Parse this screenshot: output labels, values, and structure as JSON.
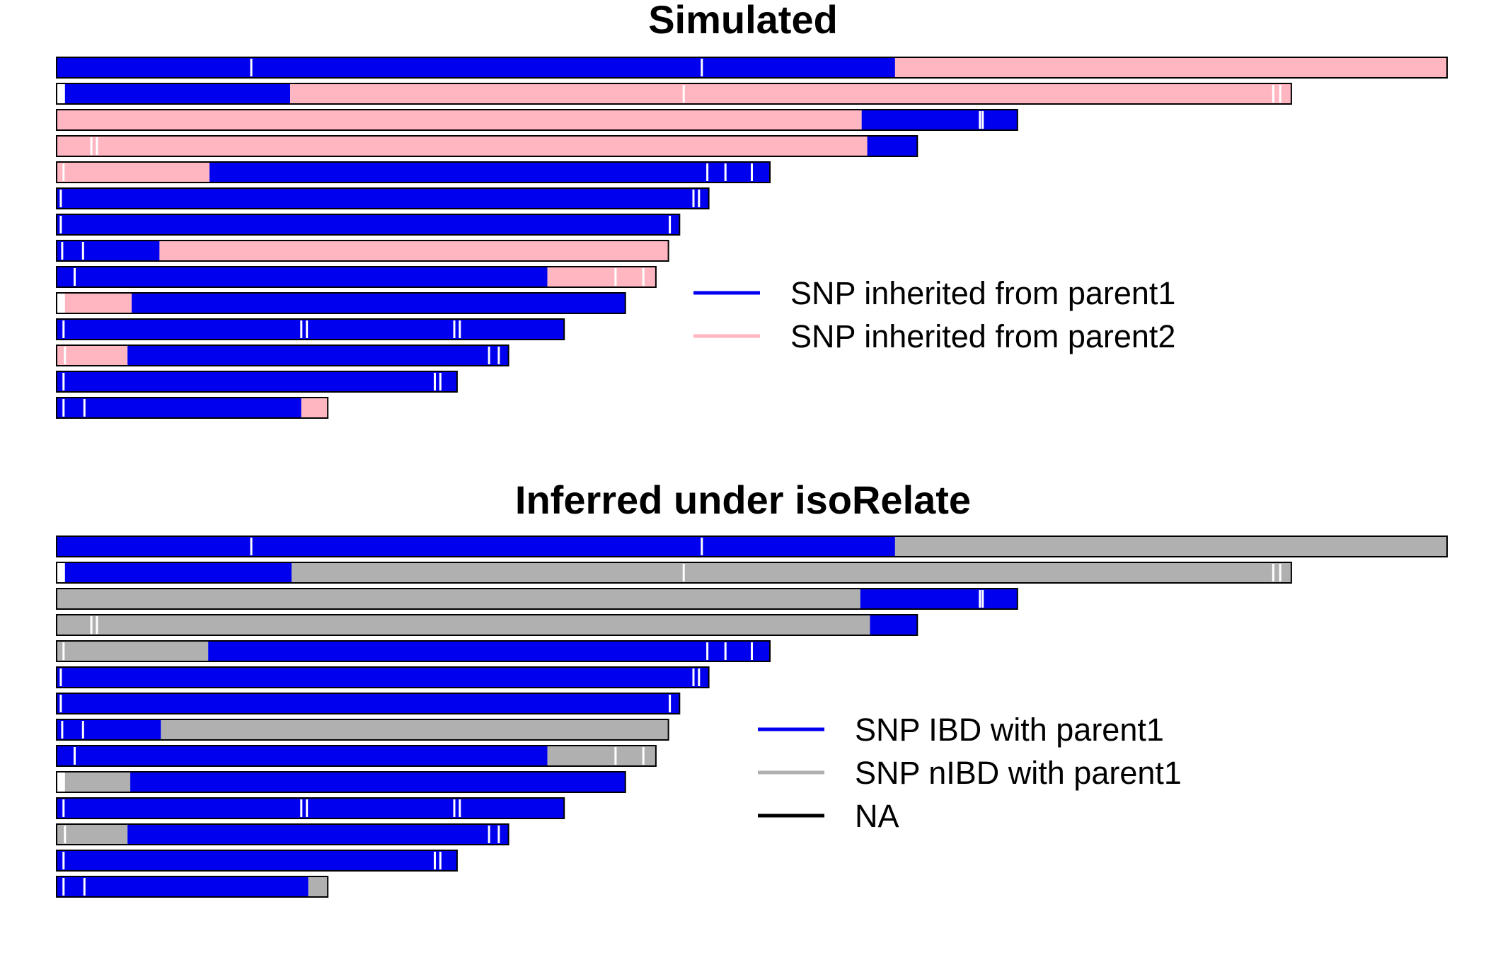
{
  "colors": {
    "parent1": "#0000ee",
    "parent2": "#ffb6c1",
    "nibd": "#b0b0b0",
    "na": "#ffffff",
    "frame": "#000000",
    "legend_na": "#000000"
  },
  "chart_data": [
    {
      "type": "bar",
      "orientation": "horizontal",
      "title": "Simulated",
      "xlabel": "",
      "ylabel": "",
      "grid": false,
      "legend_position": "right",
      "x_units": "fraction of longest chromosome",
      "legend": [
        {
          "label": "SNP inherited from parent1",
          "color_key": "parent1"
        },
        {
          "label": "SNP inherited from parent2",
          "color_key": "parent2"
        }
      ],
      "chromosomes": [
        {
          "length": 1.0,
          "segments": [
            [
              0.0,
              0.603,
              "parent1"
            ],
            [
              0.603,
              1.0,
              "parent2"
            ]
          ],
          "gaps": [
            0.14,
            0.464
          ]
        },
        {
          "length": 0.888,
          "segments": [
            [
              0.0,
              0.006,
              "na"
            ],
            [
              0.006,
              0.168,
              "parent1"
            ],
            [
              0.168,
              0.888,
              "parent2"
            ]
          ],
          "gaps": [
            0.451,
            0.875,
            0.88
          ]
        },
        {
          "length": 0.691,
          "segments": [
            [
              0.0,
              0.579,
              "parent2"
            ],
            [
              0.579,
              0.691,
              "parent1"
            ]
          ],
          "gaps": [
            0.664,
            0.666
          ]
        },
        {
          "length": 0.619,
          "segments": [
            [
              0.0,
              0.583,
              "parent2"
            ],
            [
              0.583,
              0.619,
              "parent1"
            ]
          ],
          "gaps": [
            0.025,
            0.029
          ]
        },
        {
          "length": 0.513,
          "segments": [
            [
              0.0,
              0.11,
              "parent2"
            ],
            [
              0.11,
              0.513,
              "parent1"
            ]
          ],
          "gaps": [
            0.005,
            0.468,
            0.481,
            0.5
          ]
        },
        {
          "length": 0.469,
          "segments": [
            [
              0.0,
              0.469,
              "parent1"
            ]
          ],
          "gaps": [
            0.003,
            0.458,
            0.462
          ]
        },
        {
          "length": 0.448,
          "segments": [
            [
              0.0,
              0.448,
              "parent1"
            ]
          ],
          "gaps": [
            0.003,
            0.441
          ]
        },
        {
          "length": 0.44,
          "segments": [
            [
              0.0,
              0.074,
              "parent1"
            ],
            [
              0.074,
              0.44,
              "parent2"
            ]
          ],
          "gaps": [
            0.004,
            0.019
          ]
        },
        {
          "length": 0.431,
          "segments": [
            [
              0.0,
              0.353,
              "parent1"
            ],
            [
              0.353,
              0.431,
              "parent2"
            ]
          ],
          "gaps": [
            0.013,
            0.402,
            0.422
          ]
        },
        {
          "length": 0.409,
          "segments": [
            [
              0.0,
              0.006,
              "na"
            ],
            [
              0.006,
              0.054,
              "parent2"
            ],
            [
              0.054,
              0.409,
              "parent1"
            ]
          ],
          "gaps": []
        },
        {
          "length": 0.365,
          "segments": [
            [
              0.0,
              0.365,
              "parent1"
            ]
          ],
          "gaps": [
            0.005,
            0.176,
            0.18,
            0.286,
            0.29
          ]
        },
        {
          "length": 0.325,
          "segments": [
            [
              0.0,
              0.051,
              "parent2"
            ],
            [
              0.051,
              0.325,
              "parent1"
            ]
          ],
          "gaps": [
            0.006,
            0.311,
            0.318
          ]
        },
        {
          "length": 0.288,
          "segments": [
            [
              0.0,
              0.288,
              "parent1"
            ]
          ],
          "gaps": [
            0.005,
            0.272,
            0.276
          ]
        },
        {
          "length": 0.195,
          "segments": [
            [
              0.0,
              0.176,
              "parent1"
            ],
            [
              0.176,
              0.195,
              "parent2"
            ]
          ],
          "gaps": [
            0.005,
            0.02
          ]
        }
      ]
    },
    {
      "type": "bar",
      "orientation": "horizontal",
      "title": "Inferred under isoRelate",
      "xlabel": "",
      "ylabel": "",
      "grid": false,
      "legend_position": "right",
      "x_units": "fraction of longest chromosome",
      "legend": [
        {
          "label": "SNP IBD with parent1",
          "color_key": "parent1"
        },
        {
          "label": "SNP nIBD with parent1",
          "color_key": "nibd"
        },
        {
          "label": "NA",
          "color_key": "legend_na"
        }
      ],
      "chromosomes": [
        {
          "length": 1.0,
          "segments": [
            [
              0.0,
              0.603,
              "parent1"
            ],
            [
              0.603,
              1.0,
              "nibd"
            ]
          ],
          "gaps": [
            0.14,
            0.464
          ]
        },
        {
          "length": 0.888,
          "segments": [
            [
              0.0,
              0.006,
              "na"
            ],
            [
              0.006,
              0.169,
              "parent1"
            ],
            [
              0.169,
              0.888,
              "nibd"
            ]
          ],
          "gaps": [
            0.451,
            0.875,
            0.88
          ]
        },
        {
          "length": 0.691,
          "segments": [
            [
              0.0,
              0.578,
              "nibd"
            ],
            [
              0.578,
              0.691,
              "parent1"
            ]
          ],
          "gaps": [
            0.664,
            0.666
          ]
        },
        {
          "length": 0.619,
          "segments": [
            [
              0.0,
              0.585,
              "nibd"
            ],
            [
              0.585,
              0.619,
              "parent1"
            ]
          ],
          "gaps": [
            0.025,
            0.029
          ]
        },
        {
          "length": 0.513,
          "segments": [
            [
              0.0,
              0.109,
              "nibd"
            ],
            [
              0.109,
              0.513,
              "parent1"
            ]
          ],
          "gaps": [
            0.005,
            0.468,
            0.481,
            0.5
          ]
        },
        {
          "length": 0.469,
          "segments": [
            [
              0.0,
              0.469,
              "parent1"
            ]
          ],
          "gaps": [
            0.003,
            0.458,
            0.462
          ]
        },
        {
          "length": 0.448,
          "segments": [
            [
              0.0,
              0.448,
              "parent1"
            ]
          ],
          "gaps": [
            0.003,
            0.441
          ]
        },
        {
          "length": 0.44,
          "segments": [
            [
              0.0,
              0.075,
              "parent1"
            ],
            [
              0.075,
              0.44,
              "nibd"
            ]
          ],
          "gaps": [
            0.004,
            0.019
          ]
        },
        {
          "length": 0.431,
          "segments": [
            [
              0.0,
              0.353,
              "parent1"
            ],
            [
              0.353,
              0.431,
              "nibd"
            ]
          ],
          "gaps": [
            0.013,
            0.402,
            0.422
          ]
        },
        {
          "length": 0.409,
          "segments": [
            [
              0.0,
              0.006,
              "na"
            ],
            [
              0.006,
              0.053,
              "nibd"
            ],
            [
              0.053,
              0.409,
              "parent1"
            ]
          ],
          "gaps": []
        },
        {
          "length": 0.365,
          "segments": [
            [
              0.0,
              0.365,
              "parent1"
            ]
          ],
          "gaps": [
            0.005,
            0.176,
            0.18,
            0.286,
            0.29
          ]
        },
        {
          "length": 0.325,
          "segments": [
            [
              0.0,
              0.051,
              "nibd"
            ],
            [
              0.051,
              0.325,
              "parent1"
            ]
          ],
          "gaps": [
            0.006,
            0.311,
            0.318
          ]
        },
        {
          "length": 0.288,
          "segments": [
            [
              0.0,
              0.288,
              "parent1"
            ]
          ],
          "gaps": [
            0.005,
            0.272,
            0.276
          ]
        },
        {
          "length": 0.195,
          "segments": [
            [
              0.0,
              0.181,
              "parent1"
            ],
            [
              0.181,
              0.195,
              "nibd"
            ]
          ],
          "gaps": [
            0.005,
            0.02
          ]
        }
      ]
    }
  ]
}
